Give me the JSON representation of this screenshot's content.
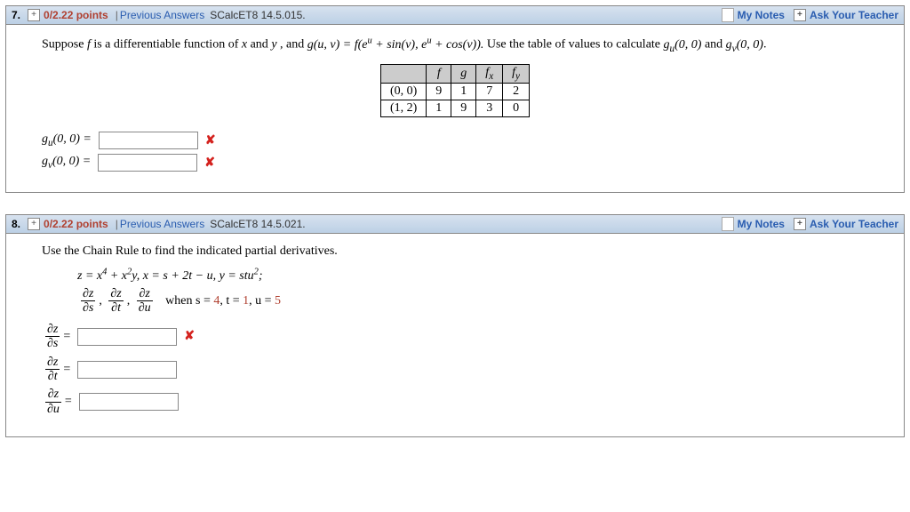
{
  "q7": {
    "number": "7.",
    "points": "0/2.22 points",
    "prev": "Previous Answers",
    "ref": "SCalcET8 14.5.015.",
    "mynotes": "My Notes",
    "ask": "Ask Your Teacher",
    "prompt_pre": "Suppose ",
    "prompt_mid1": " is a differentiable function of ",
    "prompt_mid2": " and ",
    "prompt_mid3": ", and  ",
    "g_eq": "g(u, v) = f(e",
    "g_eq2": " + sin(v), e",
    "g_eq3": " + cos(v)).",
    "prompt_end": "  Use the table of values to calculate  ",
    "gu": "g",
    "gu_sub": "u",
    "args": "(0, 0)",
    "and": "  and  ",
    "gv_sub": "v",
    "table": {
      "h1": "f",
      "h2": "g",
      "h3": "f",
      "h3s": "x",
      "h4": "f",
      "h4s": "y",
      "r1c0": "(0, 0)",
      "r1c1": "9",
      "r1c2": "1",
      "r1c3": "7",
      "r1c4": "2",
      "r2c0": "(1, 2)",
      "r2c1": "1",
      "r2c2": "9",
      "r2c3": "3",
      "r2c4": "0"
    },
    "ans1_label_pre": "g",
    "ans_eq": " = "
  },
  "q8": {
    "number": "8.",
    "points": "0/2.22 points",
    "prev": "Previous Answers",
    "ref": "SCalcET8 14.5.021.",
    "mynotes": "My Notes",
    "ask": "Ask Your Teacher",
    "prompt": "Use the Chain Rule to find the indicated partial derivatives.",
    "eq_line1_a": "z = x",
    "eq_line1_b": " + x",
    "eq_line1_c": "y,    x = s + 2t − u,    y = stu",
    "eq_line1_d": ";",
    "when": "when s = ",
    "sval": "4",
    "comma1": ", t = ",
    "tval": "1",
    "comma2": ", u = ",
    "uval": "5",
    "dz": "∂z",
    "ds": "∂s",
    "dt": "∂t",
    "du": "∂u",
    "sep": ",  "
  }
}
